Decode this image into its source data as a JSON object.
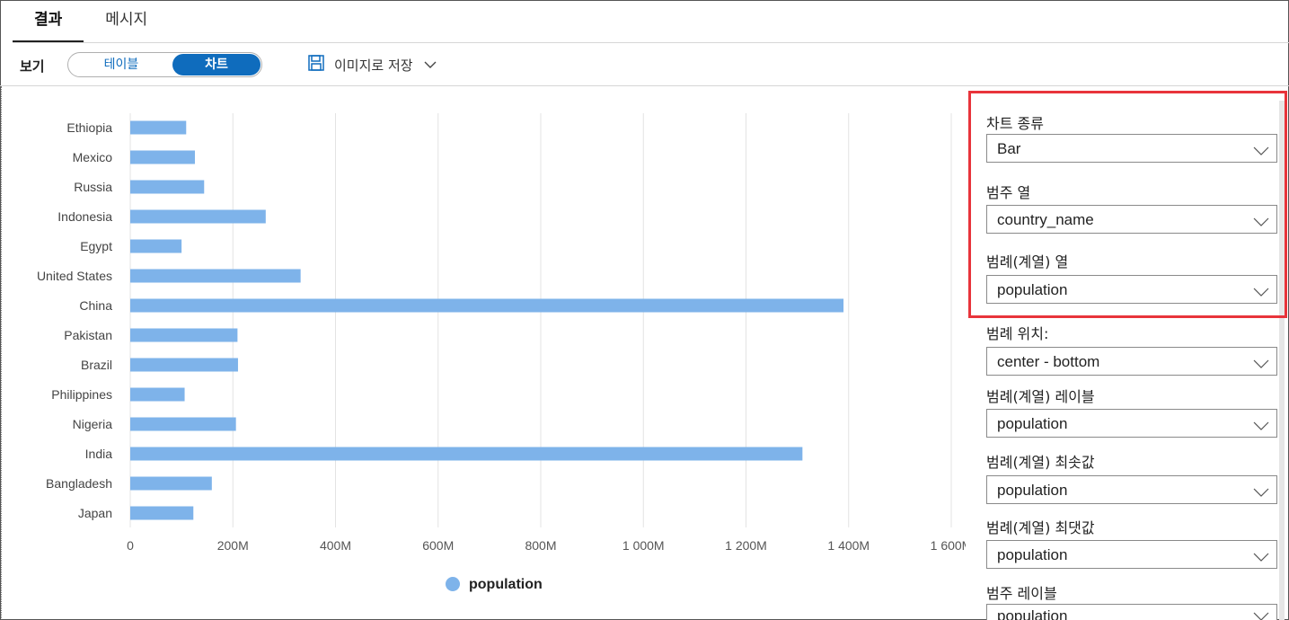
{
  "tabs": [
    {
      "label": "결과",
      "active": true
    },
    {
      "label": "메시지",
      "active": false
    }
  ],
  "toolbar": {
    "view_label": "보기",
    "toggle": {
      "table": "테이블",
      "chart": "차트",
      "selected": "차트"
    },
    "save_label": "이미지로 저장",
    "save_icon": "floppy-save-icon",
    "dropdown_icon": "chevron-down-icon"
  },
  "colors": {
    "accent": "#0f6cbd",
    "bar": "#7eb3ea",
    "highlight": "#e8343b"
  },
  "chart_data": {
    "type": "bar",
    "orientation": "horizontal",
    "categories": [
      "Ethiopia",
      "Mexico",
      "Russia",
      "Indonesia",
      "Egypt",
      "United States",
      "China",
      "Pakistan",
      "Brazil",
      "Philippines",
      "Nigeria",
      "India",
      "Bangladesh",
      "Japan"
    ],
    "series": [
      {
        "name": "population",
        "values": [
          109,
          126,
          144,
          264,
          100,
          332,
          1390,
          209,
          210,
          106,
          206,
          1310,
          159,
          123
        ]
      }
    ],
    "value_unit": "M",
    "xlim": [
      0,
      1600
    ],
    "xticks": [
      0,
      200,
      400,
      600,
      800,
      1000,
      1200,
      1400,
      1600
    ],
    "xtick_labels": [
      "0",
      "200M",
      "400M",
      "600M",
      "800M",
      "1 000M",
      "1 200M",
      "1 400M",
      "1 600M"
    ],
    "grid": "vertical",
    "legend": {
      "placement": "bottom-center",
      "label": "population"
    }
  },
  "panel": {
    "fields": [
      {
        "label": "차트 종류",
        "value": "Bar"
      },
      {
        "label": "범주 열",
        "value": "country_name"
      },
      {
        "label": "범례(계열) 열",
        "value": "population"
      },
      {
        "label": "범례 위치:",
        "value": "center - bottom"
      },
      {
        "label": "범례(계열) 레이블",
        "value": "population"
      },
      {
        "label": "범례(계열) 최솟값",
        "value": "population"
      },
      {
        "label": "범례(계열) 최댓값",
        "value": "population"
      },
      {
        "label": "범주 레이블",
        "value": "population"
      }
    ]
  }
}
